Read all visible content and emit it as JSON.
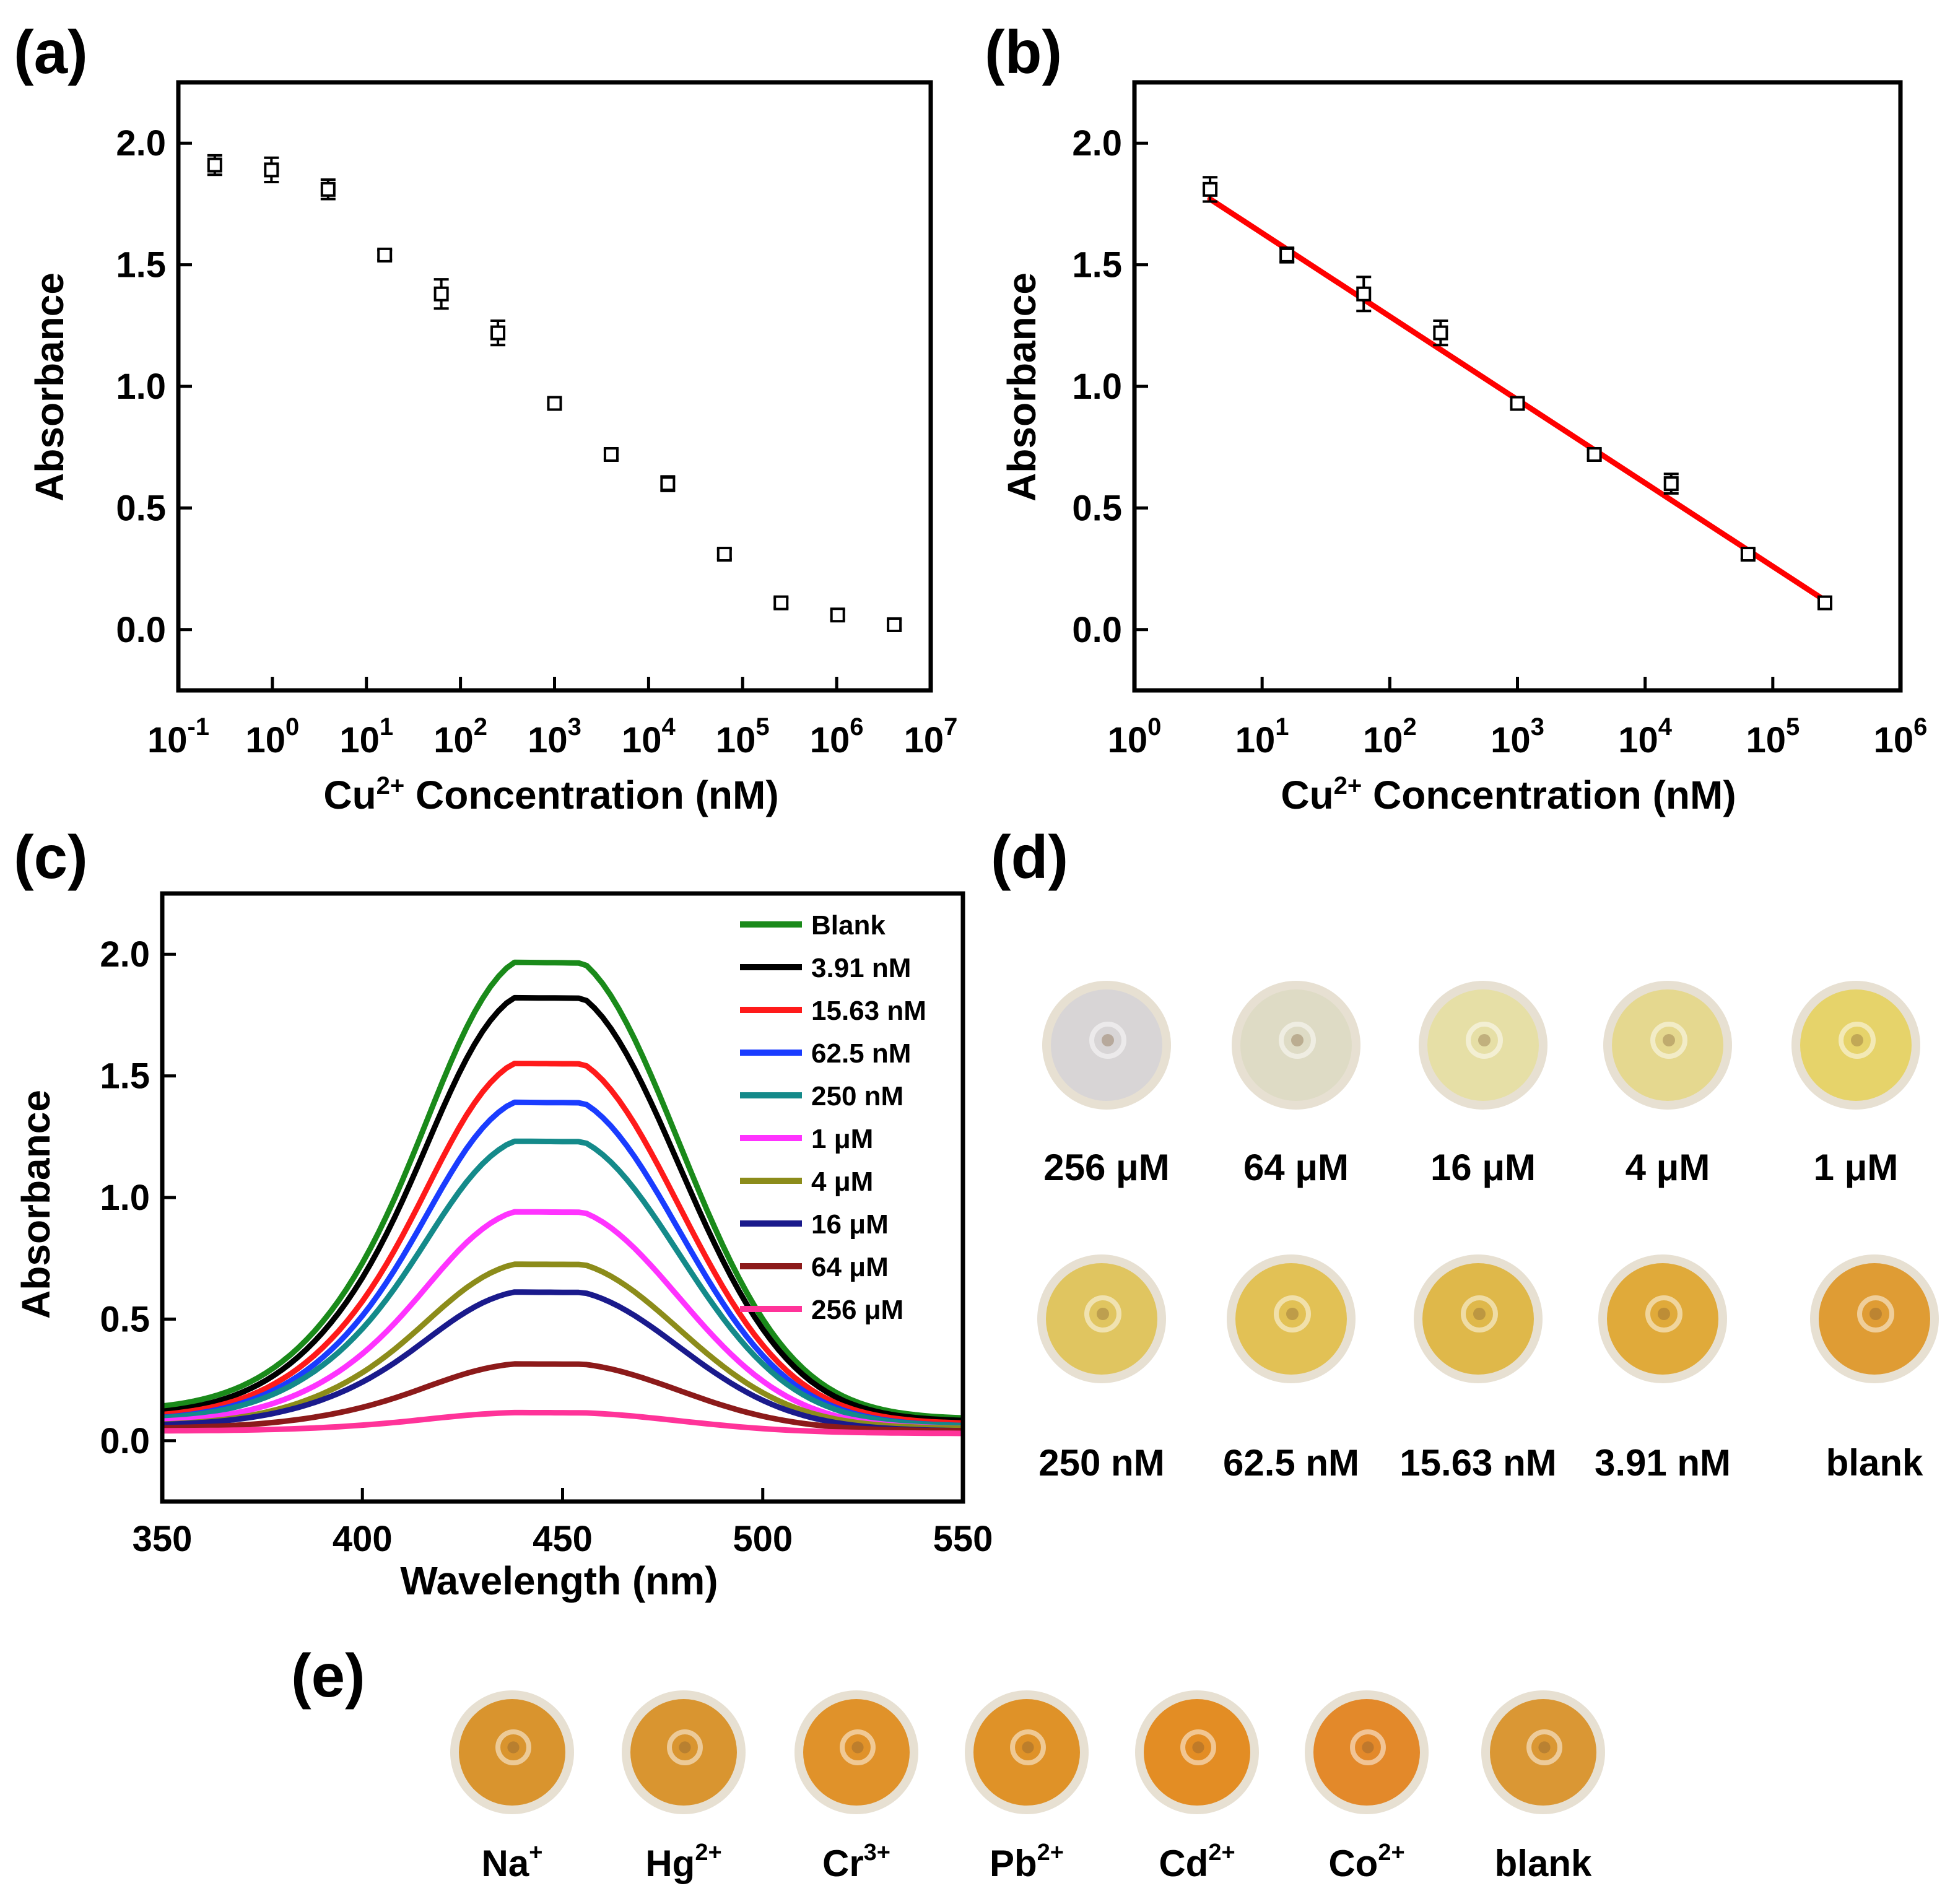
{
  "panels": {
    "a": {
      "label": "(a)",
      "ylabel": "Absorbance",
      "xlabel_main": "Cu",
      "xlabel_sup": "2+",
      "xlabel_rest": " Concentration (nM)",
      "ytick_labels": [
        "0.0",
        "0.5",
        "1.0",
        "1.5",
        "2.0"
      ],
      "xtick_exponents": [
        "-1",
        "0",
        "1",
        "2",
        "3",
        "4",
        "5",
        "6",
        "7"
      ]
    },
    "b": {
      "label": "(b)",
      "ylabel": "Absorbance",
      "xlabel_main": "Cu",
      "xlabel_sup": "2+",
      "xlabel_rest": " Concentration (nM)",
      "ytick_labels": [
        "0.0",
        "0.5",
        "1.0",
        "1.5",
        "2.0"
      ],
      "xtick_exponents": [
        "0",
        "1",
        "2",
        "3",
        "4",
        "5",
        "6"
      ]
    },
    "c": {
      "label": "(c)",
      "ylabel": "Absorbance",
      "xlabel": "Wavelength (nm)",
      "ytick_labels": [
        "0.0",
        "0.5",
        "1.0",
        "1.5",
        "2.0"
      ],
      "xtick_labels": [
        "350",
        "400",
        "450",
        "500",
        "550"
      ]
    },
    "d": {
      "label": "(d)",
      "row1": [
        "256 μM",
        "64 μM",
        "16 μM",
        "4 μM",
        "1 μM"
      ],
      "row2": [
        "250 nM",
        "62.5 nM",
        "15.63 nM",
        "3.91 nM",
        "blank"
      ],
      "row1_colors": [
        "#d8d5d6",
        "#dedbc5",
        "#e6dfa6",
        "#e5d88f",
        "#e6d36a"
      ],
      "row2_colors": [
        "#e0c560",
        "#e2c155",
        "#dfb84a",
        "#e0aa3a",
        "#df9c34"
      ]
    },
    "e": {
      "label": "(e)",
      "ions": [
        {
          "base": "Na",
          "sup": "+"
        },
        {
          "base": "Hg",
          "sup": "2+"
        },
        {
          "base": "Cr",
          "sup": "3+"
        },
        {
          "base": "Pb",
          "sup": "2+"
        },
        {
          "base": "Cd",
          "sup": "2+"
        },
        {
          "base": "Co",
          "sup": "2+"
        },
        {
          "base": "blank",
          "sup": ""
        }
      ],
      "colors": [
        "#d9942e",
        "#d99530",
        "#e0922a",
        "#df9228",
        "#e38d24",
        "#e3892a",
        "#da9734"
      ]
    }
  },
  "chart_data": [
    {
      "id": "a",
      "type": "scatter",
      "title": "",
      "xlabel": "Cu2+ Concentration (nM)",
      "ylabel": "Absorbance",
      "xscale": "log",
      "xlim": [
        0.1,
        10000000
      ],
      "ylim": [
        -0.25,
        2.25
      ],
      "x": [
        0.244,
        0.977,
        3.91,
        15.63,
        62.5,
        250,
        1000,
        4000,
        16000,
        64000,
        256000,
        1024000,
        4096000
      ],
      "y": [
        1.91,
        1.89,
        1.81,
        1.54,
        1.38,
        1.22,
        0.93,
        0.72,
        0.6,
        0.31,
        0.11,
        0.06,
        0.02
      ],
      "error": [
        0.04,
        0.05,
        0.04,
        0.02,
        0.06,
        0.05,
        0.02,
        0.02,
        0.03,
        0.02,
        0.02,
        0.02,
        0.02
      ]
    },
    {
      "id": "b",
      "type": "scatter",
      "title": "",
      "xlabel": "Cu2+ Concentration (nM)",
      "ylabel": "Absorbance",
      "xscale": "log",
      "xlim": [
        1,
        1000000
      ],
      "ylim": [
        -0.25,
        2.25
      ],
      "x": [
        3.91,
        15.63,
        62.5,
        250,
        1000,
        4000,
        16000,
        64000,
        256000
      ],
      "y": [
        1.81,
        1.54,
        1.38,
        1.22,
        0.93,
        0.72,
        0.6,
        0.31,
        0.11
      ],
      "error": [
        0.05,
        0.03,
        0.07,
        0.05,
        0.02,
        0.02,
        0.04,
        0.02,
        0.02
      ],
      "fit": {
        "x": [
          3.91,
          256000
        ],
        "y": [
          1.77,
          0.12
        ],
        "color": "#ff0000"
      }
    },
    {
      "id": "c",
      "type": "line",
      "title": "",
      "xlabel": "Wavelength (nm)",
      "ylabel": "Absorbance",
      "xlim": [
        350,
        550
      ],
      "ylim": [
        -0.25,
        2.25
      ],
      "legend_position": "top-right",
      "series": [
        {
          "name": "Blank",
          "color": "#1a8a1a",
          "peak": 1.95,
          "base": 0.09,
          "left_tail": 0.12
        },
        {
          "name": "3.91 nM",
          "color": "#000000",
          "peak": 1.81,
          "base": 0.08,
          "left_tail": 0.1
        },
        {
          "name": "15.63 nM",
          "color": "#ff1a1a",
          "peak": 1.54,
          "base": 0.07,
          "left_tail": 0.09
        },
        {
          "name": "62.5 nM",
          "color": "#1a3cff",
          "peak": 1.38,
          "base": 0.06,
          "left_tail": 0.08
        },
        {
          "name": "250 nM",
          "color": "#148a8a",
          "peak": 1.22,
          "base": 0.06,
          "left_tail": 0.08
        },
        {
          "name": "1 μM",
          "color": "#ff33ff",
          "peak": 0.93,
          "base": 0.05,
          "left_tail": 0.07
        },
        {
          "name": "4 μM",
          "color": "#8c8c1a",
          "peak": 0.72,
          "base": 0.05,
          "left_tail": 0.06
        },
        {
          "name": "16 μM",
          "color": "#1a1a8c",
          "peak": 0.6,
          "base": 0.04,
          "left_tail": 0.06
        },
        {
          "name": "64 μM",
          "color": "#8c1a1a",
          "peak": 0.31,
          "base": 0.04,
          "left_tail": 0.05
        },
        {
          "name": "256 μM",
          "color": "#ff3399",
          "peak": 0.11,
          "base": 0.03,
          "left_tail": 0.04
        }
      ]
    }
  ]
}
